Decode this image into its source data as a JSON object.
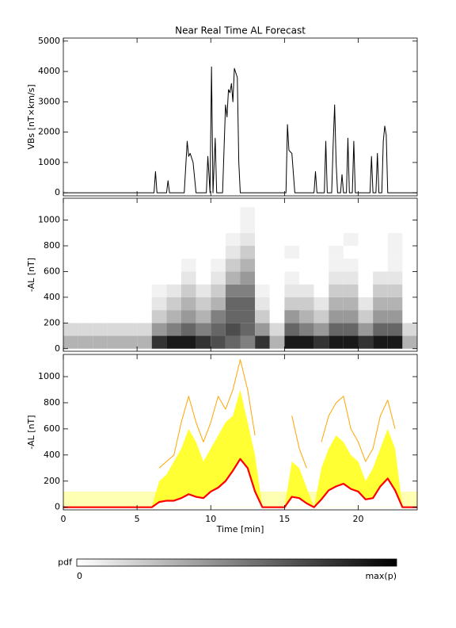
{
  "chart_data": [
    {
      "type": "line",
      "title": "Near Real Time AL Forecast",
      "ylabel": "VBs [nT×km/s]",
      "xlim": [
        0,
        24
      ],
      "xticks": [
        0,
        5,
        10,
        15,
        20
      ],
      "ylim": [
        -100,
        5100
      ],
      "yticks": [
        0,
        1000,
        2000,
        3000,
        4000,
        5000
      ],
      "x": [
        0,
        6.15,
        6.25,
        6.35,
        7.0,
        7.1,
        7.2,
        8.2,
        8.4,
        8.5,
        8.6,
        8.8,
        9.0,
        9.7,
        9.8,
        9.95,
        10.05,
        10.15,
        10.3,
        10.4,
        10.8,
        11.0,
        11.1,
        11.2,
        11.3,
        11.4,
        11.5,
        11.6,
        11.8,
        11.9,
        12.0,
        15.1,
        15.2,
        15.3,
        15.5,
        15.7,
        17.0,
        17.1,
        17.2,
        17.7,
        17.8,
        17.9,
        18.2,
        18.3,
        18.4,
        18.5,
        18.6,
        18.8,
        18.9,
        19.0,
        19.2,
        19.3,
        19.4,
        19.6,
        19.7,
        19.8,
        20.8,
        20.9,
        21.0,
        21.2,
        21.3,
        21.4,
        21.6,
        21.7,
        21.8,
        21.9,
        22.0,
        24
      ],
      "series": [
        {
          "color": "#000000",
          "values": [
            0,
            0,
            700,
            0,
            0,
            400,
            0,
            0,
            1700,
            1200,
            1300,
            1000,
            0,
            0,
            1200,
            0,
            4150,
            0,
            1800,
            0,
            0,
            2900,
            2500,
            3400,
            3300,
            3600,
            3000,
            4100,
            3800,
            1000,
            0,
            0,
            2250,
            1400,
            1300,
            0,
            0,
            700,
            0,
            0,
            1700,
            0,
            0,
            1600,
            2900,
            1000,
            0,
            0,
            600,
            0,
            0,
            1800,
            0,
            0,
            1700,
            0,
            0,
            1200,
            0,
            0,
            1300,
            0,
            0,
            1700,
            2200,
            1900,
            0,
            0
          ]
        }
      ]
    },
    {
      "type": "heatmap",
      "ylabel": "-AL [nT]",
      "xlim": [
        0,
        24
      ],
      "xticks": [
        0,
        5,
        10,
        15,
        20
      ],
      "ylim": [
        -20,
        1170
      ],
      "yticks": [
        0,
        200,
        400,
        600,
        800,
        1000
      ],
      "zlabel": "pdf",
      "zlim": [
        0,
        1
      ],
      "zticks": [
        0,
        {
          "value": 1,
          "label": "max(p)"
        }
      ],
      "x_bins": [
        0,
        1,
        2,
        3,
        4,
        5,
        6,
        7,
        8,
        9,
        10,
        11,
        12,
        13,
        14,
        15,
        16,
        17,
        18,
        19,
        20,
        21,
        22,
        23,
        24
      ],
      "y_bins": [
        0,
        100,
        200,
        300,
        400,
        500,
        600,
        700,
        800,
        900,
        1000,
        1100
      ],
      "z": [
        [
          0.3,
          0.3,
          0.3,
          0.3,
          0.3,
          0.3,
          0.8,
          0.9,
          0.9,
          0.8,
          0.7,
          0.6,
          0.5,
          0.8,
          0.3,
          0.9,
          0.9,
          0.8,
          0.9,
          0.9,
          0.8,
          0.9,
          0.9,
          0.3
        ],
        [
          0.15,
          0.15,
          0.15,
          0.15,
          0.15,
          0.15,
          0.4,
          0.5,
          0.6,
          0.5,
          0.6,
          0.7,
          0.6,
          0.4,
          0.15,
          0.6,
          0.5,
          0.4,
          0.6,
          0.6,
          0.4,
          0.6,
          0.6,
          0.15
        ],
        [
          0,
          0,
          0,
          0,
          0,
          0,
          0.2,
          0.3,
          0.4,
          0.3,
          0.5,
          0.6,
          0.6,
          0.2,
          0,
          0.4,
          0.3,
          0.2,
          0.4,
          0.4,
          0.2,
          0.4,
          0.4,
          0
        ],
        [
          0,
          0,
          0,
          0,
          0,
          0,
          0.1,
          0.2,
          0.3,
          0.2,
          0.3,
          0.6,
          0.6,
          0.1,
          0,
          0.2,
          0.2,
          0.1,
          0.3,
          0.3,
          0.1,
          0.3,
          0.3,
          0
        ],
        [
          0,
          0,
          0,
          0,
          0,
          0,
          0.05,
          0.1,
          0.2,
          0.1,
          0.2,
          0.5,
          0.5,
          0.05,
          0,
          0.1,
          0.1,
          0,
          0.2,
          0.2,
          0,
          0.2,
          0.2,
          0
        ],
        [
          0,
          0,
          0,
          0,
          0,
          0,
          0,
          0,
          0.1,
          0,
          0.1,
          0.3,
          0.4,
          0,
          0,
          0.05,
          0,
          0,
          0.1,
          0.1,
          0,
          0.1,
          0.1,
          0
        ],
        [
          0,
          0,
          0,
          0,
          0,
          0,
          0,
          0,
          0.05,
          0,
          0.05,
          0.2,
          0.3,
          0,
          0,
          0,
          0,
          0,
          0.05,
          0.05,
          0,
          0,
          0.05,
          0
        ],
        [
          0,
          0,
          0,
          0,
          0,
          0,
          0,
          0,
          0,
          0,
          0,
          0.1,
          0.2,
          0,
          0,
          0.05,
          0,
          0,
          0.05,
          0,
          0,
          0,
          0.05,
          0
        ],
        [
          0,
          0,
          0,
          0,
          0,
          0,
          0,
          0,
          0,
          0,
          0,
          0.05,
          0.1,
          0,
          0,
          0,
          0,
          0,
          0,
          0.05,
          0,
          0,
          0.05,
          0
        ],
        [
          0,
          0,
          0,
          0,
          0,
          0,
          0,
          0,
          0,
          0,
          0,
          0,
          0.05,
          0,
          0,
          0,
          0,
          0,
          0,
          0,
          0,
          0,
          0,
          0
        ],
        [
          0,
          0,
          0,
          0,
          0,
          0,
          0,
          0,
          0,
          0,
          0,
          0,
          0.05,
          0,
          0,
          0,
          0,
          0,
          0,
          0,
          0,
          0,
          0,
          0
        ]
      ]
    },
    {
      "type": "line",
      "ylabel": "-AL [nT]",
      "xlabel": "Time [min]",
      "xlim": [
        0,
        24
      ],
      "xticks": [
        0,
        5,
        10,
        15,
        20
      ],
      "ylim": [
        -20,
        1170
      ],
      "yticks": [
        0,
        200,
        400,
        600,
        800,
        1000
      ],
      "x": [
        0,
        0.5,
        1,
        1.5,
        2,
        2.5,
        3,
        3.5,
        4,
        4.5,
        5,
        5.5,
        6,
        6.5,
        7,
        7.5,
        8,
        8.5,
        9,
        9.5,
        10,
        10.5,
        11,
        11.5,
        12,
        12.5,
        13,
        13.5,
        14,
        14.5,
        15,
        15.5,
        16,
        16.5,
        17,
        17.5,
        18,
        18.5,
        19,
        19.5,
        20,
        20.5,
        21,
        21.5,
        22,
        22.5,
        23,
        23.5,
        24
      ],
      "series": [
        {
          "color": "#ffffb4",
          "fill": true,
          "values": [
            120,
            120,
            120,
            120,
            120,
            120,
            120,
            120,
            120,
            120,
            120,
            120,
            120,
            120,
            120,
            120,
            120,
            120,
            120,
            120,
            120,
            120,
            120,
            120,
            120,
            120,
            120,
            120,
            120,
            120,
            120,
            120,
            120,
            120,
            120,
            120,
            120,
            120,
            120,
            120,
            120,
            120,
            120,
            120,
            120,
            120,
            120,
            120,
            120
          ]
        },
        {
          "color": "#ffff33",
          "fill": true,
          "values": [
            0,
            0,
            0,
            0,
            0,
            0,
            0,
            0,
            0,
            0,
            0,
            0,
            0,
            200,
            250,
            350,
            450,
            600,
            500,
            350,
            450,
            550,
            650,
            700,
            900,
            650,
            400,
            0,
            0,
            0,
            0,
            350,
            300,
            150,
            0,
            300,
            450,
            550,
            500,
            400,
            350,
            200,
            300,
            450,
            600,
            450,
            0,
            0,
            0
          ]
        },
        {
          "color": "#ffa500",
          "values": [
            null,
            null,
            null,
            null,
            null,
            null,
            null,
            null,
            null,
            null,
            null,
            null,
            null,
            300,
            350,
            400,
            650,
            850,
            650,
            500,
            650,
            850,
            750,
            900,
            1130,
            900,
            550,
            null,
            null,
            null,
            null,
            700,
            450,
            300,
            null,
            500,
            700,
            800,
            850,
            600,
            500,
            350,
            450,
            700,
            820,
            600,
            null,
            null,
            null
          ]
        },
        {
          "color": "#ff0000",
          "fill_under": "#ffffff",
          "values": [
            0,
            0,
            0,
            0,
            0,
            0,
            0,
            0,
            0,
            0,
            0,
            0,
            0,
            40,
            50,
            50,
            70,
            100,
            80,
            70,
            120,
            150,
            200,
            280,
            370,
            300,
            120,
            0,
            0,
            0,
            0,
            80,
            70,
            30,
            0,
            60,
            130,
            160,
            180,
            140,
            120,
            60,
            70,
            160,
            220,
            130,
            0,
            0,
            0
          ]
        }
      ]
    }
  ]
}
